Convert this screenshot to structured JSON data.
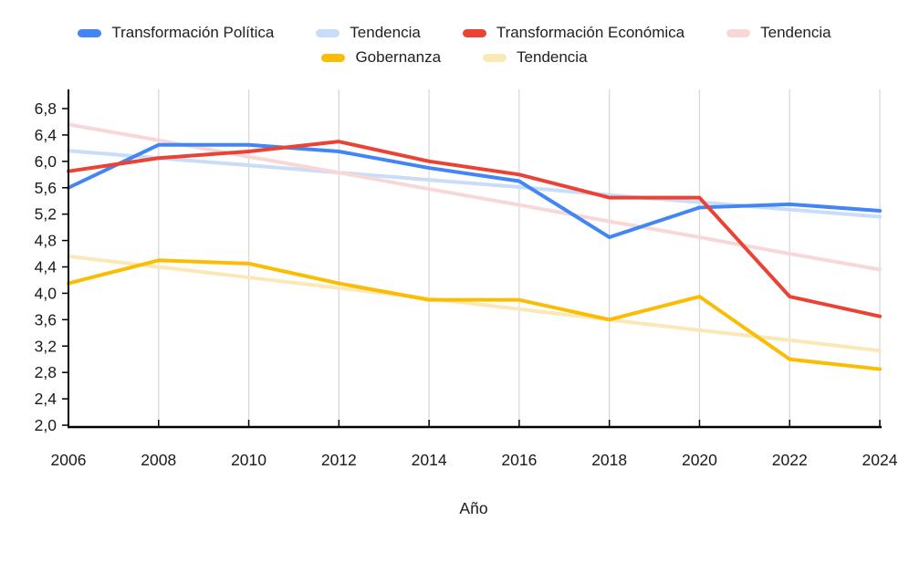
{
  "chart_data": {
    "type": "line",
    "title": "",
    "xlabel": "Año",
    "ylabel": "",
    "categories": [
      "2006",
      "2008",
      "2010",
      "2012",
      "2014",
      "2016",
      "2018",
      "2020",
      "2022",
      "2024"
    ],
    "ylim": [
      2.0,
      6.8
    ],
    "y_tick_step": 0.4,
    "y_tick_labels": [
      "2,0",
      "2,4",
      "2,8",
      "3,2",
      "3,6",
      "4,0",
      "4,4",
      "4,8",
      "5,2",
      "5,6",
      "6,0",
      "6,4",
      "6,8"
    ],
    "grid": "vertical-only",
    "legend_position": "top",
    "decimal_separator": ",",
    "axis_color": "#000000",
    "gridline_color": "#d8d8d8",
    "text_color": "#1a1a1a",
    "series": [
      {
        "name": "Transformación Política",
        "role": "data",
        "color": "#4285F4",
        "values": [
          5.6,
          6.25,
          6.25,
          6.15,
          5.9,
          5.7,
          4.85,
          5.3,
          5.35,
          5.25
        ]
      },
      {
        "name": "Tendencia",
        "role": "trend",
        "of": "Transformación Política",
        "color": "#C9DCF8",
        "values": [
          6.16,
          6.05,
          5.94,
          5.83,
          5.72,
          5.61,
          5.49,
          5.38,
          5.27,
          5.16
        ]
      },
      {
        "name": "Transformación Económica",
        "role": "data",
        "color": "#EA4335",
        "values": [
          5.85,
          6.05,
          6.15,
          6.3,
          6.0,
          5.8,
          5.45,
          5.45,
          3.95,
          3.65
        ]
      },
      {
        "name": "Tendencia",
        "role": "trend",
        "of": "Transformación Económica",
        "color": "#F8D8D6",
        "values": [
          6.56,
          6.32,
          6.07,
          5.83,
          5.58,
          5.34,
          5.09,
          4.85,
          4.6,
          4.36
        ]
      },
      {
        "name": "Gobernanza",
        "role": "data",
        "color": "#FBBC04",
        "values": [
          4.15,
          4.5,
          4.45,
          4.15,
          3.9,
          3.9,
          3.6,
          3.95,
          3.0,
          2.85
        ]
      },
      {
        "name": "Tendencia",
        "role": "trend",
        "of": "Gobernanza",
        "color": "#FAE8B6",
        "values": [
          4.56,
          4.4,
          4.24,
          4.08,
          3.92,
          3.76,
          3.6,
          3.44,
          3.29,
          3.13
        ]
      }
    ]
  }
}
